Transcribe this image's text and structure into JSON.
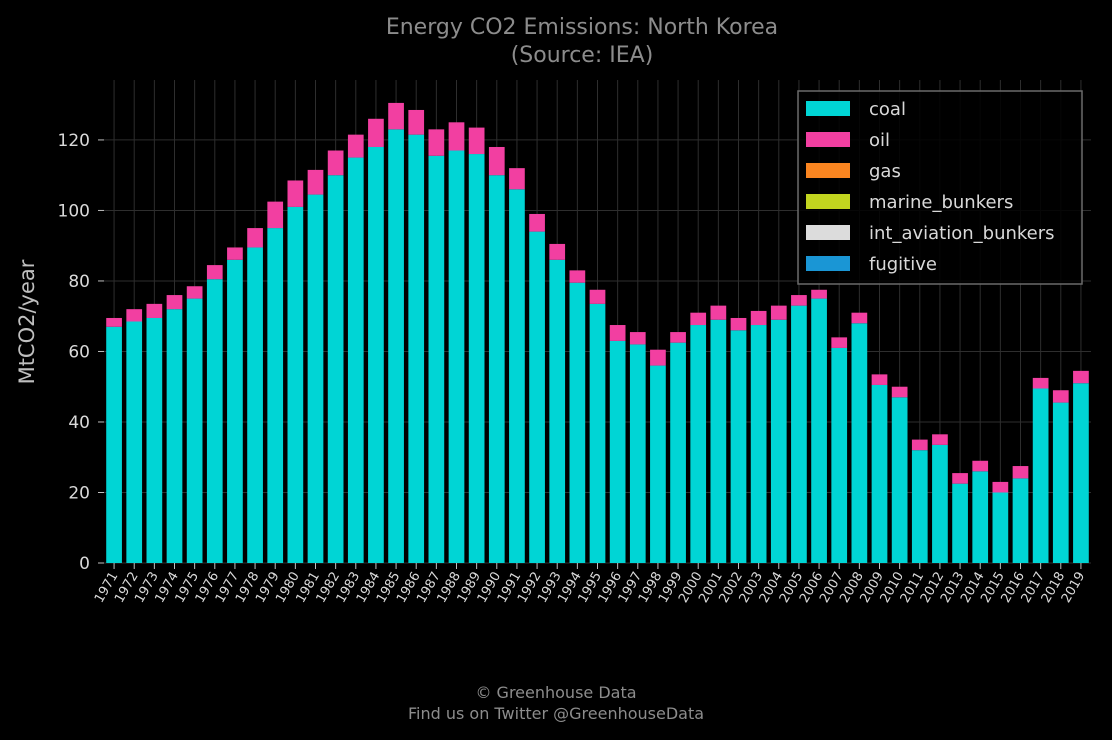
{
  "chart_data": {
    "type": "bar",
    "stacked": true,
    "title": "Energy CO2 Emissions: North Korea",
    "subtitle": "(Source: IEA)",
    "xlabel": "",
    "ylabel": "MtCO2/year",
    "ylim": [
      0,
      137
    ],
    "yticks": [
      0,
      20,
      40,
      60,
      80,
      100,
      120
    ],
    "grid": true,
    "legend_position": "top-right",
    "categories": [
      "1971",
      "1972",
      "1973",
      "1974",
      "1975",
      "1976",
      "1977",
      "1978",
      "1979",
      "1980",
      "1981",
      "1982",
      "1983",
      "1984",
      "1985",
      "1986",
      "1987",
      "1988",
      "1989",
      "1990",
      "1991",
      "1992",
      "1993",
      "1994",
      "1995",
      "1996",
      "1997",
      "1998",
      "1999",
      "2000",
      "2001",
      "2002",
      "2003",
      "2004",
      "2005",
      "2006",
      "2007",
      "2008",
      "2009",
      "2010",
      "2011",
      "2012",
      "2013",
      "2014",
      "2015",
      "2016",
      "2017",
      "2018",
      "2019"
    ],
    "series": [
      {
        "name": "coal",
        "color": "#00d5d5",
        "values": [
          67,
          68.5,
          69.5,
          72,
          75,
          80.5,
          86,
          89.5,
          95,
          101,
          104.5,
          110,
          115,
          118,
          123,
          121.5,
          115.5,
          117,
          116,
          110,
          106,
          94,
          86,
          79.5,
          73.5,
          63,
          62,
          56,
          62.5,
          67.5,
          69,
          66,
          67.5,
          69,
          73,
          75,
          61,
          68,
          50.5,
          47,
          32,
          33.5,
          22.5,
          26,
          20,
          24,
          49.5,
          45.5,
          51
        ]
      },
      {
        "name": "oil",
        "color": "#f23fa1",
        "values": [
          2.5,
          3.5,
          4,
          4,
          3.5,
          4,
          3.5,
          5.5,
          7.5,
          7.5,
          7,
          7,
          6.5,
          8,
          7.5,
          7,
          7.5,
          8,
          7.5,
          8,
          6,
          5,
          4.5,
          3.5,
          4,
          4.5,
          3.5,
          4.5,
          3,
          3.5,
          4,
          3.5,
          4,
          4,
          3,
          2.5,
          3,
          3,
          3,
          3,
          3,
          3,
          3,
          3,
          3,
          3.5,
          3,
          3.5,
          3.5
        ]
      },
      {
        "name": "gas",
        "color": "#fa8520",
        "values": [
          0,
          0,
          0,
          0,
          0,
          0,
          0,
          0,
          0,
          0,
          0,
          0,
          0,
          0,
          0,
          0,
          0,
          0,
          0,
          0,
          0,
          0,
          0,
          0,
          0,
          0,
          0,
          0,
          0,
          0,
          0,
          0,
          0,
          0,
          0,
          0,
          0,
          0,
          0,
          0,
          0,
          0,
          0,
          0,
          0,
          0,
          0,
          0,
          0
        ]
      },
      {
        "name": "marine_bunkers",
        "color": "#c2d51f",
        "values": [
          0,
          0,
          0,
          0,
          0,
          0,
          0,
          0,
          0,
          0,
          0,
          0,
          0,
          0,
          0,
          0,
          0,
          0,
          0,
          0,
          0,
          0,
          0,
          0,
          0,
          0,
          0,
          0,
          0,
          0,
          0,
          0,
          0,
          0,
          0,
          0,
          0,
          0,
          0,
          0,
          0,
          0,
          0,
          0,
          0,
          0,
          0,
          0,
          0
        ]
      },
      {
        "name": "int_aviation_bunkers",
        "color": "#dcdcdc",
        "values": [
          0,
          0,
          0,
          0,
          0,
          0,
          0,
          0,
          0,
          0,
          0,
          0,
          0,
          0,
          0,
          0,
          0,
          0,
          0,
          0,
          0,
          0,
          0,
          0,
          0,
          0,
          0,
          0,
          0,
          0,
          0,
          0,
          0,
          0,
          0,
          0,
          0,
          0,
          0,
          0,
          0,
          0,
          0,
          0,
          0,
          0,
          0,
          0,
          0
        ]
      },
      {
        "name": "fugitive",
        "color": "#1a96d5",
        "values": [
          0,
          0,
          0,
          0,
          0,
          0,
          0,
          0,
          0,
          0,
          0,
          0,
          0,
          0,
          0,
          0,
          0,
          0,
          0,
          0,
          0,
          0,
          0,
          0,
          0,
          0,
          0,
          0,
          0,
          0,
          0,
          0,
          0,
          0,
          0,
          0,
          0,
          0,
          0,
          0,
          0,
          0,
          0,
          0,
          0,
          0,
          0,
          0,
          0
        ]
      }
    ]
  },
  "footer": {
    "copyright": "© Greenhouse Data",
    "twitter": "Find us on Twitter @GreenhouseData"
  }
}
